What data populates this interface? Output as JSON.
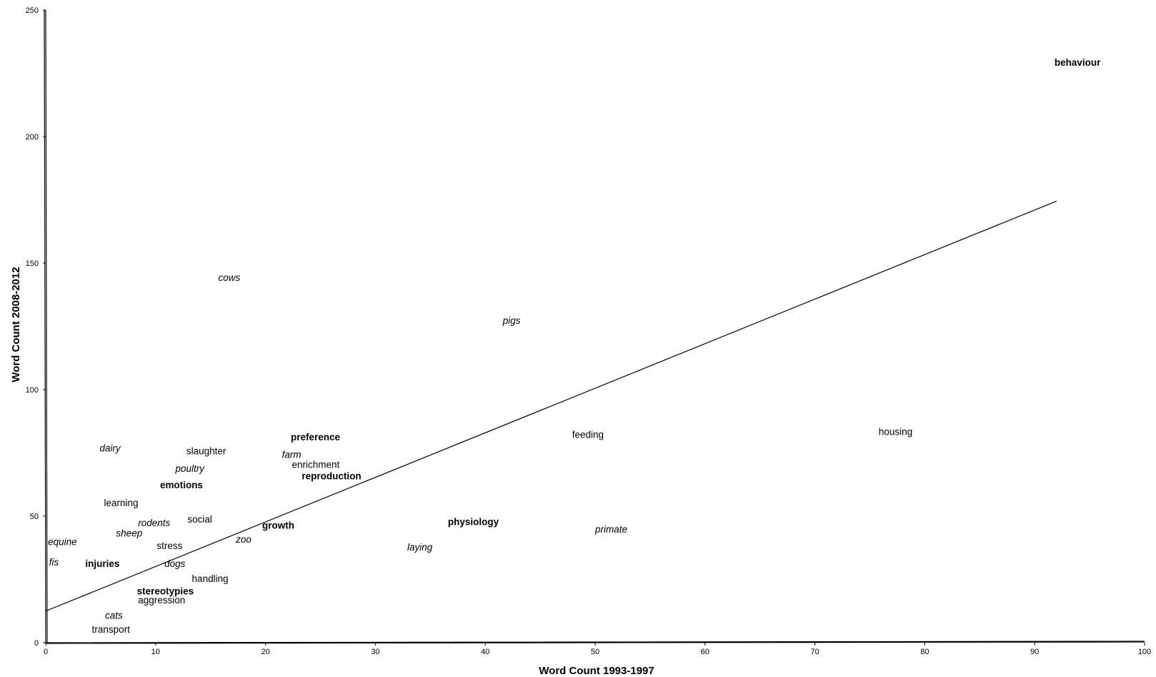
{
  "chart_data": {
    "type": "scatter",
    "title": "",
    "xlabel": "Word Count 1993-1997",
    "ylabel": "Word Count 2008-2012",
    "xlim": [
      0,
      100
    ],
    "ylim": [
      0,
      250
    ],
    "x_ticks": [
      0,
      10,
      20,
      30,
      40,
      50,
      60,
      70,
      80,
      90,
      100
    ],
    "y_ticks": [
      0,
      50,
      100,
      150,
      200,
      250
    ],
    "grid": false,
    "legend": "none",
    "trendline": {
      "x": [
        0,
        92
      ],
      "y": [
        12.5,
        174.5
      ]
    },
    "points": [
      {
        "label": "behaviour",
        "x": 91.8,
        "y": 228,
        "style": "bold"
      },
      {
        "label": "cows",
        "x": 15.7,
        "y": 143,
        "style": "italic"
      },
      {
        "label": "pigs",
        "x": 41.6,
        "y": 126,
        "style": "italic"
      },
      {
        "label": "housing",
        "x": 75.8,
        "y": 82,
        "style": "normal"
      },
      {
        "label": "feeding",
        "x": 47.9,
        "y": 81,
        "style": "normal"
      },
      {
        "label": "preference",
        "x": 22.3,
        "y": 80,
        "style": "bold"
      },
      {
        "label": "dairy",
        "x": 4.9,
        "y": 75.5,
        "style": "italic"
      },
      {
        "label": "slaughter",
        "x": 12.8,
        "y": 74.5,
        "style": "normal"
      },
      {
        "label": "farm",
        "x": 21.5,
        "y": 73,
        "style": "italic"
      },
      {
        "label": "enrichment",
        "x": 22.4,
        "y": 69,
        "style": "normal"
      },
      {
        "label": "poultry",
        "x": 11.8,
        "y": 67.5,
        "style": "italic"
      },
      {
        "label": "reproduction",
        "x": 23.3,
        "y": 64.5,
        "style": "bold"
      },
      {
        "label": "emotions",
        "x": 10.4,
        "y": 61,
        "style": "bold"
      },
      {
        "label": "learning",
        "x": 5.3,
        "y": 54,
        "style": "normal"
      },
      {
        "label": "social",
        "x": 12.9,
        "y": 47.5,
        "style": "normal"
      },
      {
        "label": "physiology",
        "x": 36.6,
        "y": 46.5,
        "style": "bold"
      },
      {
        "label": "rodents",
        "x": 8.4,
        "y": 46,
        "style": "italic"
      },
      {
        "label": "growth",
        "x": 19.7,
        "y": 45,
        "style": "bold"
      },
      {
        "label": "primate",
        "x": 50,
        "y": 43.5,
        "style": "italic"
      },
      {
        "label": "sheep",
        "x": 6.4,
        "y": 42,
        "style": "italic"
      },
      {
        "label": "zoo",
        "x": 17.3,
        "y": 39.5,
        "style": "italic"
      },
      {
        "label": "equine",
        "x": 0.2,
        "y": 38.5,
        "style": "italic"
      },
      {
        "label": "stress",
        "x": 10.1,
        "y": 37,
        "style": "normal"
      },
      {
        "label": "laying",
        "x": 32.9,
        "y": 36.5,
        "style": "italic"
      },
      {
        "label": "fis",
        "x": 0.3,
        "y": 30.5,
        "style": "italic"
      },
      {
        "label": "injuries",
        "x": 3.6,
        "y": 30,
        "style": "bold"
      },
      {
        "label": "dogs",
        "x": 10.8,
        "y": 30,
        "style": "italic"
      },
      {
        "label": "handling",
        "x": 13.3,
        "y": 24,
        "style": "normal"
      },
      {
        "label": "stereotypies",
        "x": 8.3,
        "y": 19,
        "style": "bold"
      },
      {
        "label": "aggression",
        "x": 8.4,
        "y": 15.5,
        "style": "normal"
      },
      {
        "label": "cats",
        "x": 5.4,
        "y": 9.5,
        "style": "italic"
      },
      {
        "label": "transport",
        "x": 4.2,
        "y": 4,
        "style": "normal"
      }
    ]
  }
}
